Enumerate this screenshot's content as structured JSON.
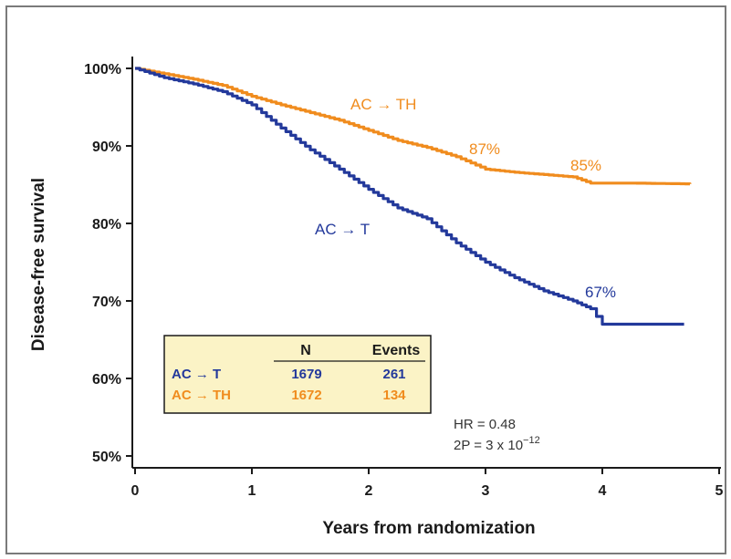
{
  "chart_data": {
    "type": "line",
    "xlabel": "Years from randomization",
    "ylabel": "Disease-free survival",
    "xlim": [
      0,
      5
    ],
    "ylim": [
      50,
      100
    ],
    "x_ticks": [
      "0",
      "1",
      "2",
      "3",
      "4",
      "5"
    ],
    "y_ticks": [
      "50%",
      "60%",
      "70%",
      "80%",
      "90%",
      "100%"
    ],
    "grid": false,
    "series": [
      {
        "name": "AC → TH",
        "color": "#f08c1e",
        "points": [
          [
            0,
            100
          ],
          [
            0.25,
            99.3
          ],
          [
            0.5,
            98.6
          ],
          [
            0.75,
            97.8
          ],
          [
            1,
            96.4
          ],
          [
            1.25,
            95.3
          ],
          [
            1.5,
            94.3
          ],
          [
            1.75,
            93.3
          ],
          [
            2,
            92
          ],
          [
            2.25,
            90.7
          ],
          [
            2.5,
            89.8
          ],
          [
            2.75,
            88.6
          ],
          [
            3,
            87
          ],
          [
            3.25,
            86.6
          ],
          [
            3.5,
            86.3
          ],
          [
            3.75,
            86
          ],
          [
            3.9,
            85.2
          ],
          [
            4.25,
            85.2
          ],
          [
            4.75,
            85.1
          ]
        ],
        "end_label": "AC → TH",
        "annotations": [
          {
            "x": 3,
            "text": "87%"
          },
          {
            "x": 4,
            "text": "85%"
          }
        ]
      },
      {
        "name": "AC → T",
        "color": "#23399b",
        "points": [
          [
            0,
            100
          ],
          [
            0.25,
            98.8
          ],
          [
            0.5,
            98
          ],
          [
            0.75,
            97
          ],
          [
            1,
            95.3
          ],
          [
            1.25,
            92.3
          ],
          [
            1.5,
            89.5
          ],
          [
            1.75,
            87
          ],
          [
            2,
            84.4
          ],
          [
            2.25,
            82
          ],
          [
            2.5,
            80.6
          ],
          [
            2.75,
            77.5
          ],
          [
            3,
            75
          ],
          [
            3.25,
            73
          ],
          [
            3.5,
            71.3
          ],
          [
            3.75,
            70
          ],
          [
            3.9,
            69
          ],
          [
            4,
            67
          ],
          [
            4.25,
            67
          ],
          [
            4.7,
            67
          ]
        ],
        "end_label": "AC → T",
        "annotations": [
          {
            "x": 4,
            "text": "67%"
          }
        ]
      }
    ],
    "table": {
      "headers": [
        "",
        "N",
        "Events"
      ],
      "rows": [
        {
          "label": "AC → T",
          "n": "1679",
          "events": "261",
          "color": "#23399b"
        },
        {
          "label": "AC → TH",
          "n": "1672",
          "events": "134",
          "color": "#f08c1e"
        }
      ]
    },
    "stats": {
      "hr": "HR = 0.48",
      "p_prefix": "2P = 3 x 10",
      "p_exponent": "−12"
    }
  }
}
